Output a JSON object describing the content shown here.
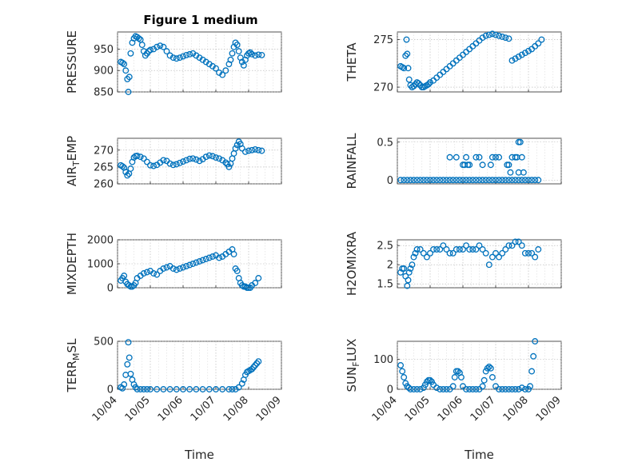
{
  "figure_title": "Figure 1 medium",
  "colors": {
    "marker": "#0072bd",
    "axis": "#262626"
  },
  "chart_data": [
    {
      "type": "scatter",
      "ylabel": "PRESSURE",
      "xlabel": "",
      "title": "Figure 1 medium",
      "ylim": [
        850,
        990
      ],
      "yticks": [
        850,
        900,
        950
      ],
      "ytick_labels": [
        "850",
        "900",
        "950"
      ],
      "xlim": [
        0,
        5
      ],
      "xticks": [
        0,
        1,
        2,
        3,
        4,
        5
      ],
      "xtick_labels": [
        "10/04",
        "10/05",
        "10/06",
        "10/07",
        "10/08",
        "10/09"
      ],
      "show_x_ticklabels": false,
      "grid": true,
      "x": [
        0.1,
        0.15,
        0.2,
        0.25,
        0.3,
        0.33,
        0.36,
        0.4,
        0.45,
        0.5,
        0.55,
        0.6,
        0.65,
        0.7,
        0.75,
        0.8,
        0.85,
        0.9,
        0.95,
        1.0,
        1.1,
        1.2,
        1.3,
        1.4,
        1.5,
        1.6,
        1.7,
        1.8,
        1.9,
        2.0,
        2.1,
        2.2,
        2.3,
        2.4,
        2.5,
        2.6,
        2.7,
        2.8,
        2.9,
        3.0,
        3.1,
        3.2,
        3.3,
        3.4,
        3.45,
        3.5,
        3.55,
        3.6,
        3.65,
        3.7,
        3.75,
        3.8,
        3.85,
        3.9,
        3.95,
        4.0,
        4.05,
        4.1,
        4.2,
        4.3,
        4.4
      ],
      "y": [
        920,
        918,
        915,
        900,
        880,
        850,
        885,
        940,
        965,
        975,
        980,
        978,
        975,
        972,
        960,
        945,
        935,
        940,
        945,
        948,
        950,
        955,
        958,
        955,
        945,
        935,
        930,
        928,
        930,
        933,
        936,
        938,
        940,
        935,
        930,
        925,
        920,
        915,
        910,
        905,
        895,
        890,
        900,
        915,
        925,
        940,
        955,
        965,
        960,
        945,
        930,
        920,
        912,
        925,
        935,
        940,
        942,
        938,
        935,
        937,
        936
      ]
    },
    {
      "type": "scatter",
      "ylabel": "THETA",
      "xlabel": "",
      "ylim": [
        269.5,
        275.8
      ],
      "yticks": [
        270,
        275
      ],
      "ytick_labels": [
        "270",
        "275"
      ],
      "xlim": [
        0,
        5
      ],
      "xticks": [
        0,
        1,
        2,
        3,
        4,
        5
      ],
      "xtick_labels": [
        "10/04",
        "10/05",
        "10/06",
        "10/07",
        "10/08",
        "10/09"
      ],
      "show_x_ticklabels": false,
      "grid": true,
      "x": [
        0.1,
        0.15,
        0.2,
        0.25,
        0.28,
        0.3,
        0.33,
        0.36,
        0.4,
        0.45,
        0.5,
        0.55,
        0.6,
        0.65,
        0.7,
        0.75,
        0.8,
        0.85,
        0.9,
        0.95,
        1.0,
        1.1,
        1.2,
        1.3,
        1.4,
        1.5,
        1.6,
        1.7,
        1.8,
        1.9,
        2.0,
        2.1,
        2.2,
        2.3,
        2.4,
        2.5,
        2.6,
        2.7,
        2.8,
        2.9,
        3.0,
        3.1,
        3.2,
        3.3,
        3.4,
        3.5,
        3.6,
        3.7,
        3.8,
        3.9,
        4.0,
        4.1,
        4.2,
        4.3,
        4.4
      ],
      "y": [
        272.2,
        272.1,
        272.0,
        273.3,
        275.0,
        273.5,
        272.0,
        270.8,
        270.2,
        270.0,
        270.1,
        270.3,
        270.5,
        270.4,
        270.2,
        270.0,
        270.0,
        270.1,
        270.2,
        270.3,
        270.5,
        270.7,
        271.0,
        271.3,
        271.6,
        271.9,
        272.2,
        272.5,
        272.8,
        273.1,
        273.4,
        273.7,
        274.0,
        274.3,
        274.6,
        274.9,
        275.2,
        275.4,
        275.5,
        275.6,
        275.5,
        275.4,
        275.3,
        275.2,
        275.1,
        272.8,
        273.0,
        273.2,
        273.4,
        273.6,
        273.8,
        274.0,
        274.3,
        274.6,
        275.0
      ]
    },
    {
      "type": "scatter",
      "ylabel": "AIR_TEMP",
      "xlabel": "",
      "ylim": [
        260,
        273.5
      ],
      "yticks": [
        260,
        265,
        270
      ],
      "ytick_labels": [
        "260",
        "265",
        "270"
      ],
      "xlim": [
        0,
        5
      ],
      "xticks": [
        0,
        1,
        2,
        3,
        4,
        5
      ],
      "xtick_labels": [
        "10/04",
        "10/05",
        "10/06",
        "10/07",
        "10/08",
        "10/09"
      ],
      "show_x_ticklabels": false,
      "grid": true,
      "x": [
        0.1,
        0.15,
        0.2,
        0.25,
        0.3,
        0.35,
        0.4,
        0.45,
        0.5,
        0.55,
        0.6,
        0.7,
        0.8,
        0.9,
        1.0,
        1.1,
        1.2,
        1.3,
        1.4,
        1.5,
        1.6,
        1.7,
        1.8,
        1.9,
        2.0,
        2.1,
        2.2,
        2.3,
        2.4,
        2.5,
        2.6,
        2.7,
        2.8,
        2.9,
        3.0,
        3.1,
        3.2,
        3.3,
        3.35,
        3.4,
        3.45,
        3.5,
        3.55,
        3.6,
        3.65,
        3.7,
        3.75,
        3.8,
        3.9,
        4.0,
        4.1,
        4.2,
        4.3,
        4.4
      ],
      "y": [
        265.5,
        265.2,
        264.8,
        263.5,
        262.5,
        263.0,
        264.5,
        266.5,
        267.8,
        268.2,
        268.3,
        268.0,
        267.5,
        266.5,
        265.5,
        265.3,
        265.6,
        266.3,
        267.0,
        266.8,
        266.0,
        265.6,
        265.8,
        266.2,
        266.6,
        267.0,
        267.4,
        267.5,
        267.2,
        266.8,
        267.3,
        268.0,
        268.4,
        268.2,
        267.8,
        267.5,
        267.0,
        266.3,
        265.8,
        265.0,
        266.0,
        267.5,
        269.0,
        270.5,
        271.5,
        272.5,
        271.8,
        270.5,
        269.5,
        269.8,
        270.0,
        270.2,
        270.0,
        269.8
      ]
    },
    {
      "type": "scatter",
      "ylabel": "RAINFALL",
      "xlabel": "",
      "ylim": [
        -0.05,
        0.55
      ],
      "yticks": [
        0,
        0.5
      ],
      "ytick_labels": [
        "0",
        "0.5"
      ],
      "xlim": [
        0,
        5
      ],
      "xticks": [
        0,
        1,
        2,
        3,
        4,
        5
      ],
      "xtick_labels": [
        "10/04",
        "10/05",
        "10/06",
        "10/07",
        "10/08",
        "10/09"
      ],
      "show_x_ticklabels": false,
      "grid": true,
      "x": [
        0.1,
        0.2,
        0.3,
        0.4,
        0.5,
        0.6,
        0.7,
        0.8,
        0.9,
        1.0,
        1.1,
        1.2,
        1.3,
        1.4,
        1.5,
        1.6,
        1.7,
        1.8,
        1.9,
        2.0,
        2.1,
        2.2,
        2.3,
        2.4,
        2.5,
        2.6,
        2.7,
        2.8,
        2.9,
        3.0,
        3.1,
        3.2,
        3.3,
        3.4,
        3.5,
        3.6,
        3.7,
        3.8,
        3.9,
        4.0,
        4.1,
        4.2,
        4.3,
        1.6,
        1.8,
        2.0,
        2.1,
        2.2,
        2.4,
        2.5,
        2.6,
        2.9,
        3.0,
        3.1,
        3.4,
        3.5,
        3.6,
        3.7,
        3.65,
        3.75,
        2.05,
        2.15,
        2.85,
        3.35,
        3.45,
        3.7,
        3.8,
        3.85
      ],
      "y": [
        0,
        0,
        0,
        0,
        0,
        0,
        0,
        0,
        0,
        0,
        0,
        0,
        0,
        0,
        0,
        0,
        0,
        0,
        0,
        0,
        0,
        0,
        0,
        0,
        0,
        0,
        0,
        0,
        0,
        0,
        0,
        0,
        0,
        0,
        0,
        0,
        0,
        0,
        0,
        0,
        0,
        0,
        0,
        0.3,
        0.3,
        0.2,
        0.3,
        0.2,
        0.3,
        0.3,
        0.2,
        0.3,
        0.3,
        0.3,
        0.2,
        0.3,
        0.3,
        0.5,
        0.3,
        0.5,
        0.2,
        0.2,
        0.2,
        0.2,
        0.1,
        0.1,
        0.3,
        0.1
      ]
    },
    {
      "type": "scatter",
      "ylabel": "MIXDEPTH",
      "xlabel": "",
      "ylim": [
        0,
        2000
      ],
      "yticks": [
        0,
        1000,
        2000
      ],
      "ytick_labels": [
        "0",
        "1000",
        "2000"
      ],
      "xlim": [
        0,
        5
      ],
      "xticks": [
        0,
        1,
        2,
        3,
        4,
        5
      ],
      "xtick_labels": [
        "10/04",
        "10/05",
        "10/06",
        "10/07",
        "10/08",
        "10/09"
      ],
      "show_x_ticklabels": false,
      "grid": true,
      "x": [
        0.1,
        0.15,
        0.2,
        0.25,
        0.3,
        0.35,
        0.4,
        0.45,
        0.5,
        0.55,
        0.6,
        0.7,
        0.8,
        0.9,
        1.0,
        1.1,
        1.2,
        1.3,
        1.4,
        1.5,
        1.6,
        1.7,
        1.8,
        1.9,
        2.0,
        2.1,
        2.2,
        2.3,
        2.4,
        2.5,
        2.6,
        2.7,
        2.8,
        2.9,
        3.0,
        3.1,
        3.2,
        3.3,
        3.4,
        3.5,
        3.55,
        3.6,
        3.65,
        3.7,
        3.75,
        3.8,
        3.85,
        3.9,
        3.95,
        4.0,
        4.05,
        4.1,
        4.2,
        4.3
      ],
      "y": [
        300,
        400,
        500,
        250,
        150,
        100,
        50,
        50,
        100,
        200,
        400,
        500,
        600,
        650,
        700,
        600,
        550,
        700,
        800,
        850,
        900,
        800,
        750,
        800,
        850,
        900,
        950,
        1000,
        1050,
        1100,
        1150,
        1200,
        1250,
        1300,
        1350,
        1250,
        1300,
        1400,
        1500,
        1600,
        1400,
        800,
        700,
        400,
        200,
        100,
        50,
        50,
        0,
        0,
        0,
        100,
        200,
        400
      ]
    },
    {
      "type": "scatter",
      "ylabel": "H2OMIXRA",
      "xlabel": "",
      "ylim": [
        1.4,
        2.65
      ],
      "yticks": [
        1.5,
        2,
        2.5
      ],
      "ytick_labels": [
        "1.5",
        "2",
        "2.5"
      ],
      "xlim": [
        0,
        5
      ],
      "xticks": [
        0,
        1,
        2,
        3,
        4,
        5
      ],
      "xtick_labels": [
        "10/04",
        "10/05",
        "10/06",
        "10/07",
        "10/08",
        "10/09"
      ],
      "show_x_ticklabels": false,
      "grid": true,
      "x": [
        0.1,
        0.15,
        0.2,
        0.25,
        0.3,
        0.33,
        0.36,
        0.4,
        0.45,
        0.5,
        0.55,
        0.6,
        0.7,
        0.8,
        0.9,
        1.0,
        1.1,
        1.2,
        1.3,
        1.4,
        1.5,
        1.6,
        1.7,
        1.8,
        1.9,
        2.0,
        2.1,
        2.2,
        2.3,
        2.4,
        2.5,
        2.6,
        2.7,
        2.8,
        2.9,
        3.0,
        3.1,
        3.2,
        3.3,
        3.4,
        3.5,
        3.6,
        3.7,
        3.8,
        3.9,
        4.0,
        4.1,
        4.2,
        4.3
      ],
      "y": [
        1.8,
        1.9,
        1.9,
        1.7,
        1.45,
        1.6,
        1.8,
        1.9,
        2.0,
        2.2,
        2.3,
        2.4,
        2.4,
        2.3,
        2.2,
        2.3,
        2.4,
        2.4,
        2.4,
        2.5,
        2.4,
        2.3,
        2.3,
        2.4,
        2.4,
        2.4,
        2.5,
        2.4,
        2.4,
        2.4,
        2.5,
        2.4,
        2.3,
        2.0,
        2.2,
        2.3,
        2.2,
        2.3,
        2.4,
        2.5,
        2.5,
        2.6,
        2.6,
        2.5,
        2.3,
        2.3,
        2.3,
        2.2,
        2.4
      ]
    },
    {
      "type": "scatter",
      "ylabel": "TERR_MSL",
      "xlabel": "Time",
      "ylim": [
        0,
        500
      ],
      "yticks": [
        0,
        500
      ],
      "ytick_labels": [
        "0",
        "500"
      ],
      "xlim": [
        0,
        5
      ],
      "xticks": [
        0,
        1,
        2,
        3,
        4,
        5
      ],
      "xtick_labels": [
        "10/04",
        "10/05",
        "10/06",
        "10/07",
        "10/08",
        "10/09"
      ],
      "show_x_ticklabels": true,
      "grid": true,
      "x": [
        0.1,
        0.15,
        0.2,
        0.25,
        0.3,
        0.33,
        0.36,
        0.4,
        0.45,
        0.5,
        0.55,
        0.6,
        0.7,
        0.8,
        0.9,
        1.0,
        1.2,
        1.4,
        1.6,
        1.8,
        2.0,
        2.2,
        2.4,
        2.6,
        2.8,
        3.0,
        3.2,
        3.4,
        3.5,
        3.6,
        3.7,
        3.8,
        3.85,
        3.9,
        3.95,
        4.0,
        4.05,
        4.1,
        4.15,
        4.2,
        4.25,
        4.3
      ],
      "y": [
        20,
        10,
        50,
        150,
        260,
        490,
        330,
        160,
        100,
        50,
        20,
        0,
        0,
        0,
        0,
        0,
        0,
        0,
        0,
        0,
        0,
        0,
        0,
        0,
        0,
        0,
        0,
        0,
        0,
        0,
        20,
        60,
        100,
        150,
        180,
        190,
        200,
        210,
        230,
        250,
        270,
        290
      ]
    },
    {
      "type": "scatter",
      "ylabel": "SUN_FLUX",
      "xlabel": "Time",
      "ylim": [
        0,
        160
      ],
      "yticks": [
        0,
        100
      ],
      "ytick_labels": [
        "0",
        "100"
      ],
      "xlim": [
        0,
        5
      ],
      "xticks": [
        0,
        1,
        2,
        3,
        4,
        5
      ],
      "xtick_labels": [
        "10/04",
        "10/05",
        "10/06",
        "10/07",
        "10/08",
        "10/09"
      ],
      "show_x_ticklabels": true,
      "grid": true,
      "x": [
        0.1,
        0.15,
        0.2,
        0.25,
        0.3,
        0.35,
        0.4,
        0.5,
        0.6,
        0.7,
        0.8,
        0.85,
        0.9,
        0.95,
        1.0,
        1.05,
        1.1,
        1.2,
        1.3,
        1.4,
        1.5,
        1.6,
        1.7,
        1.75,
        1.8,
        1.85,
        1.9,
        1.95,
        2.0,
        2.1,
        2.2,
        2.3,
        2.4,
        2.5,
        2.6,
        2.65,
        2.7,
        2.75,
        2.8,
        2.85,
        2.9,
        3.0,
        3.1,
        3.2,
        3.3,
        3.4,
        3.5,
        3.6,
        3.7,
        3.8,
        3.9,
        4.0,
        4.05,
        4.1,
        4.15,
        4.2
      ],
      "y": [
        80,
        60,
        40,
        20,
        10,
        5,
        0,
        0,
        0,
        0,
        5,
        15,
        25,
        30,
        30,
        25,
        15,
        5,
        0,
        0,
        0,
        0,
        10,
        40,
        60,
        60,
        55,
        40,
        10,
        0,
        0,
        0,
        0,
        0,
        10,
        30,
        60,
        70,
        75,
        70,
        40,
        10,
        0,
        0,
        0,
        0,
        0,
        0,
        0,
        5,
        0,
        0,
        10,
        60,
        110,
        160
      ]
    }
  ]
}
